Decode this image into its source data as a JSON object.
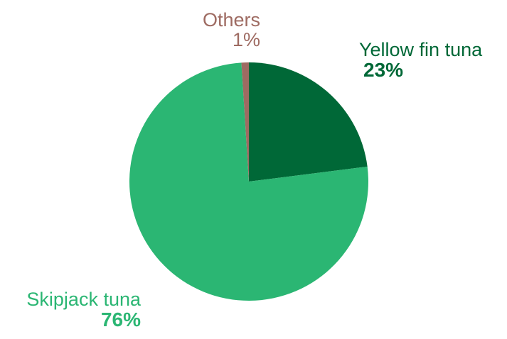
{
  "chart_data": {
    "type": "pie",
    "slices": [
      {
        "name": "Yellow fin tuna",
        "value": 23,
        "label": "23%",
        "color": "#006837",
        "bold_pct": true
      },
      {
        "name": "Skipjack tuna",
        "value": 76,
        "label": "76%",
        "color": "#2bb673",
        "bold_pct": true
      },
      {
        "name": "Others",
        "value": 1,
        "label": "1%",
        "color": "#9e6b62",
        "bold_pct": false
      }
    ],
    "start": "top",
    "direction": "clockwise"
  }
}
